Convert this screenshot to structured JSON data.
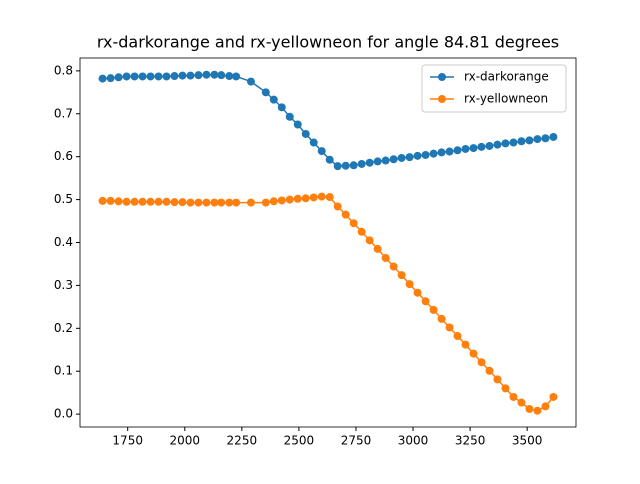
{
  "chart_data": {
    "type": "line",
    "title": "rx-darkorange and rx-yellowneon for angle 84.81 degrees",
    "x": [
      1640,
      1675,
      1710,
      1745,
      1780,
      1815,
      1850,
      1885,
      1920,
      1955,
      1990,
      2025,
      2060,
      2095,
      2130,
      2160,
      2195,
      2225,
      2290,
      2355,
      2390,
      2425,
      2460,
      2495,
      2530,
      2565,
      2600,
      2635,
      2670,
      2705,
      2740,
      2775,
      2810,
      2845,
      2880,
      2915,
      2950,
      2985,
      3020,
      3055,
      3090,
      3125,
      3160,
      3195,
      3230,
      3265,
      3300,
      3335,
      3370,
      3405,
      3440,
      3475,
      3510,
      3545,
      3580,
      3615
    ],
    "series": [
      {
        "name": "rx-darkorange",
        "color": "#1f77b4",
        "values": [
          0.782,
          0.783,
          0.785,
          0.787,
          0.787,
          0.787,
          0.787,
          0.787,
          0.787,
          0.788,
          0.789,
          0.789,
          0.79,
          0.791,
          0.791,
          0.79,
          0.788,
          0.787,
          0.775,
          0.75,
          0.733,
          0.715,
          0.693,
          0.675,
          0.653,
          0.633,
          0.613,
          0.593,
          0.578,
          0.579,
          0.58,
          0.583,
          0.586,
          0.589,
          0.591,
          0.594,
          0.597,
          0.599,
          0.602,
          0.604,
          0.607,
          0.61,
          0.612,
          0.615,
          0.618,
          0.62,
          0.623,
          0.625,
          0.628,
          0.631,
          0.633,
          0.636,
          0.638,
          0.641,
          0.643,
          0.646
        ]
      },
      {
        "name": "rx-yellowneon",
        "color": "#ff7f0e",
        "values": [
          0.497,
          0.497,
          0.496,
          0.495,
          0.495,
          0.495,
          0.495,
          0.495,
          0.495,
          0.494,
          0.494,
          0.493,
          0.493,
          0.493,
          0.493,
          0.493,
          0.493,
          0.493,
          0.493,
          0.493,
          0.496,
          0.498,
          0.5,
          0.502,
          0.503,
          0.505,
          0.507,
          0.506,
          0.484,
          0.465,
          0.445,
          0.425,
          0.405,
          0.385,
          0.364,
          0.344,
          0.324,
          0.303,
          0.283,
          0.263,
          0.243,
          0.222,
          0.202,
          0.182,
          0.162,
          0.141,
          0.121,
          0.101,
          0.081,
          0.06,
          0.04,
          0.027,
          0.012,
          0.008,
          0.018,
          0.04
        ]
      }
    ],
    "xlim": [
      1541,
      3714
    ],
    "ylim": [
      -0.03,
      0.83
    ],
    "xticks": [
      1750,
      2000,
      2250,
      2500,
      2750,
      3000,
      3250,
      3500
    ],
    "yticks": [
      {
        "value": 0,
        "label": "0.0"
      },
      0.1,
      0.2,
      0.3,
      0.4,
      0.5,
      0.6,
      0.7,
      0.8
    ],
    "legend": "upper right",
    "grid": false
  }
}
